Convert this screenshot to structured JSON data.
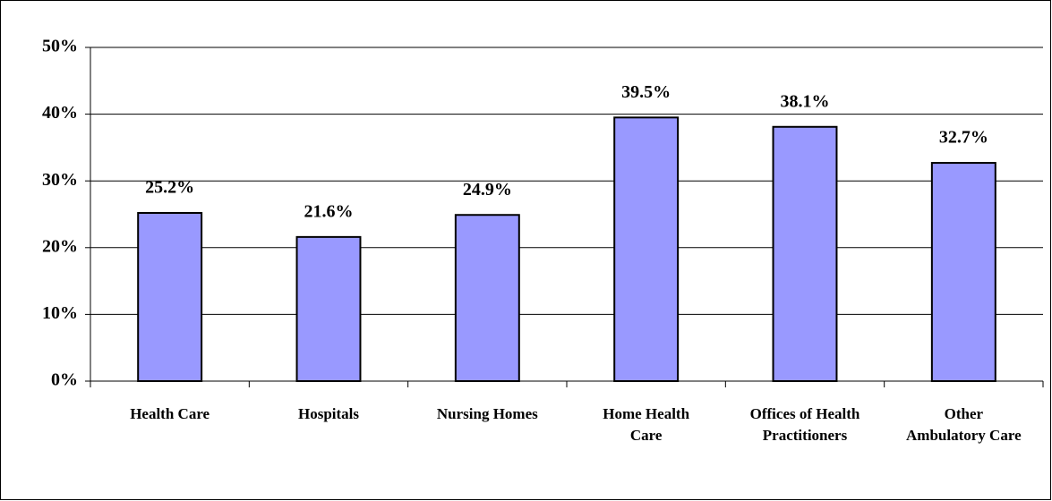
{
  "chart_data": {
    "type": "bar",
    "categories": [
      "Health Care",
      "Hospitals",
      "Nursing Homes",
      "Home Health Care",
      "Offices of Health Practitioners",
      "Other Ambulatory Care"
    ],
    "values": [
      25.2,
      21.6,
      24.9,
      39.5,
      38.1,
      32.7
    ],
    "value_labels": [
      "25.2%",
      "21.6%",
      "24.9%",
      "39.5%",
      "38.1%",
      "32.7%"
    ],
    "color": "#9999ff",
    "ylim": [
      0,
      50
    ],
    "yticks": [
      {
        "value": 0,
        "label": "0%"
      },
      {
        "value": 10,
        "label": "10%"
      },
      {
        "value": 20,
        "label": "20%"
      },
      {
        "value": 30,
        "label": "30%"
      },
      {
        "value": 40,
        "label": "40%"
      },
      {
        "value": 50,
        "label": "50%"
      }
    ],
    "grid": true
  }
}
